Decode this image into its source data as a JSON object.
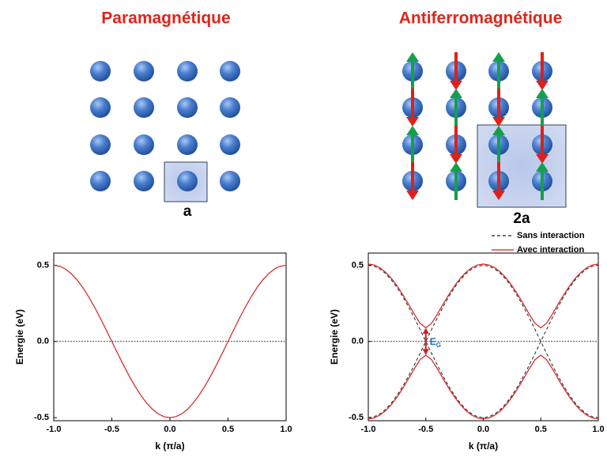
{
  "diagrams": [
    {
      "title": "Paramagnétique",
      "cell_label": "a"
    },
    {
      "title": "Antiferromagnétique",
      "cell_label": "2a"
    }
  ],
  "chart_data": [
    {
      "type": "line",
      "xlabel": "k (π/a)",
      "ylabel": "Energie (eV)",
      "xlim": [
        -1,
        1
      ],
      "ylim": [
        -0.52,
        0.58
      ],
      "xticks": [
        {
          "value": -1,
          "label": "-1.0"
        },
        -0.5,
        {
          "value": 0,
          "label": "0.0"
        },
        0.5,
        {
          "value": 1,
          "label": "1.0"
        }
      ],
      "yticks": [
        -0.5,
        {
          "value": 0,
          "label": "0.0"
        },
        0.5
      ],
      "hline": 0,
      "x": [
        -1,
        -0.95,
        -0.9,
        -0.85,
        -0.8,
        -0.75,
        -0.7,
        -0.65,
        -0.6,
        -0.55,
        -0.5,
        -0.45,
        -0.4,
        -0.35,
        -0.3,
        -0.25,
        -0.2,
        -0.15,
        -0.1,
        -0.05,
        0,
        0.05,
        0.1,
        0.15,
        0.2,
        0.25,
        0.3,
        0.35,
        0.4,
        0.45,
        0.5,
        0.55,
        0.6,
        0.65,
        0.7,
        0.75,
        0.8,
        0.85,
        0.9,
        0.95,
        1
      ],
      "series": [
        {
          "color": "#d42020",
          "style": "solid",
          "branches": [
            [
              0.5,
              0.4938,
              0.4755,
              0.4455,
              0.4045,
              0.3536,
              0.2939,
              0.227,
              0.1545,
              0.0782,
              0,
              -0.0782,
              -0.1545,
              -0.227,
              -0.2939,
              -0.3536,
              -0.4045,
              -0.4455,
              -0.4755,
              -0.4938,
              -0.5,
              -0.4938,
              -0.4755,
              -0.4455,
              -0.4045,
              -0.3536,
              -0.2939,
              -0.227,
              -0.1545,
              -0.0782,
              0,
              0.0782,
              0.1545,
              0.227,
              0.2939,
              0.3536,
              0.4045,
              0.4455,
              0.4755,
              0.4938,
              0.5
            ]
          ]
        }
      ]
    },
    {
      "type": "line",
      "xlabel": "k (π/a)",
      "ylabel": "Energie (eV)",
      "xlim": [
        -1,
        1
      ],
      "ylim": [
        -0.52,
        0.58
      ],
      "xticks": [
        {
          "value": -1,
          "label": "-1.0"
        },
        -0.5,
        {
          "value": 0,
          "label": "0.0"
        },
        0.5,
        {
          "value": 1,
          "label": "1.0"
        }
      ],
      "yticks": [
        -0.5,
        {
          "value": 0,
          "label": "0.0"
        },
        0.5
      ],
      "hline": 0,
      "legend": "upper right",
      "annotation": {
        "text": "E",
        "subscript": "G"
      },
      "x": [
        -1,
        -0.95,
        -0.9,
        -0.85,
        -0.8,
        -0.75,
        -0.7,
        -0.65,
        -0.6,
        -0.55,
        -0.5,
        -0.45,
        -0.4,
        -0.35,
        -0.3,
        -0.25,
        -0.2,
        -0.15,
        -0.1,
        -0.05,
        0,
        0.05,
        0.1,
        0.15,
        0.2,
        0.25,
        0.3,
        0.35,
        0.4,
        0.45,
        0.5,
        0.55,
        0.6,
        0.65,
        0.7,
        0.75,
        0.8,
        0.85,
        0.9,
        0.95,
        1
      ],
      "series": [
        {
          "name": "Sans interaction",
          "color": "#222222",
          "style": "dashed",
          "branches": [
            [
              0.5,
              0.4938,
              0.4755,
              0.4455,
              0.4045,
              0.3536,
              0.2939,
              0.227,
              0.1545,
              0.0782,
              0,
              -0.0782,
              -0.1545,
              -0.227,
              -0.2939,
              -0.3536,
              -0.4045,
              -0.4455,
              -0.4755,
              -0.4938,
              -0.5,
              -0.4938,
              -0.4755,
              -0.4455,
              -0.4045,
              -0.3536,
              -0.2939,
              -0.227,
              -0.1545,
              -0.0782,
              0,
              0.0782,
              0.1545,
              0.227,
              0.2939,
              0.3536,
              0.4045,
              0.4455,
              0.4755,
              0.4938,
              0.5
            ],
            [
              -0.5,
              -0.4938,
              -0.4755,
              -0.4455,
              -0.4045,
              -0.3536,
              -0.2939,
              -0.227,
              -0.1545,
              -0.0782,
              0,
              0.0782,
              0.1545,
              0.227,
              0.2939,
              0.3536,
              0.4045,
              0.4455,
              0.4755,
              0.4938,
              0.5,
              0.4938,
              0.4755,
              0.4455,
              0.4045,
              0.3536,
              0.2939,
              0.227,
              0.1545,
              0.0782,
              0,
              -0.0782,
              -0.1545,
              -0.227,
              -0.2939,
              -0.3536,
              -0.4045,
              -0.4455,
              -0.4755,
              -0.4938,
              -0.5
            ]
          ]
        },
        {
          "name": "Avec interaction",
          "color": "#d42020",
          "style": "solid",
          "branches": [
            [
              0.508,
              0.5019,
              0.4839,
              0.4545,
              0.4144,
              0.3649,
              0.3074,
              0.2442,
              0.1788,
              0.1192,
              0.09,
              0.1192,
              0.1788,
              0.2442,
              0.3074,
              0.3649,
              0.4144,
              0.4545,
              0.4839,
              0.5019,
              0.508,
              0.5019,
              0.4839,
              0.4545,
              0.4144,
              0.3649,
              0.3074,
              0.2442,
              0.1788,
              0.1192,
              0.09,
              0.1192,
              0.1788,
              0.2442,
              0.3074,
              0.3649,
              0.4144,
              0.4545,
              0.4839,
              0.5019,
              0.508
            ],
            [
              -0.508,
              -0.5019,
              -0.4839,
              -0.4545,
              -0.4144,
              -0.3649,
              -0.3074,
              -0.2442,
              -0.1788,
              -0.1192,
              -0.09,
              -0.1192,
              -0.1788,
              -0.2442,
              -0.3074,
              -0.3649,
              -0.4144,
              -0.4545,
              -0.4839,
              -0.5019,
              -0.508,
              -0.5019,
              -0.4839,
              -0.4545,
              -0.4144,
              -0.3649,
              -0.3074,
              -0.2442,
              -0.1788,
              -0.1192,
              -0.09,
              -0.1192,
              -0.1788,
              -0.2442,
              -0.3074,
              -0.3649,
              -0.4144,
              -0.4545,
              -0.4839,
              -0.5019,
              -0.508
            ]
          ]
        }
      ]
    }
  ]
}
